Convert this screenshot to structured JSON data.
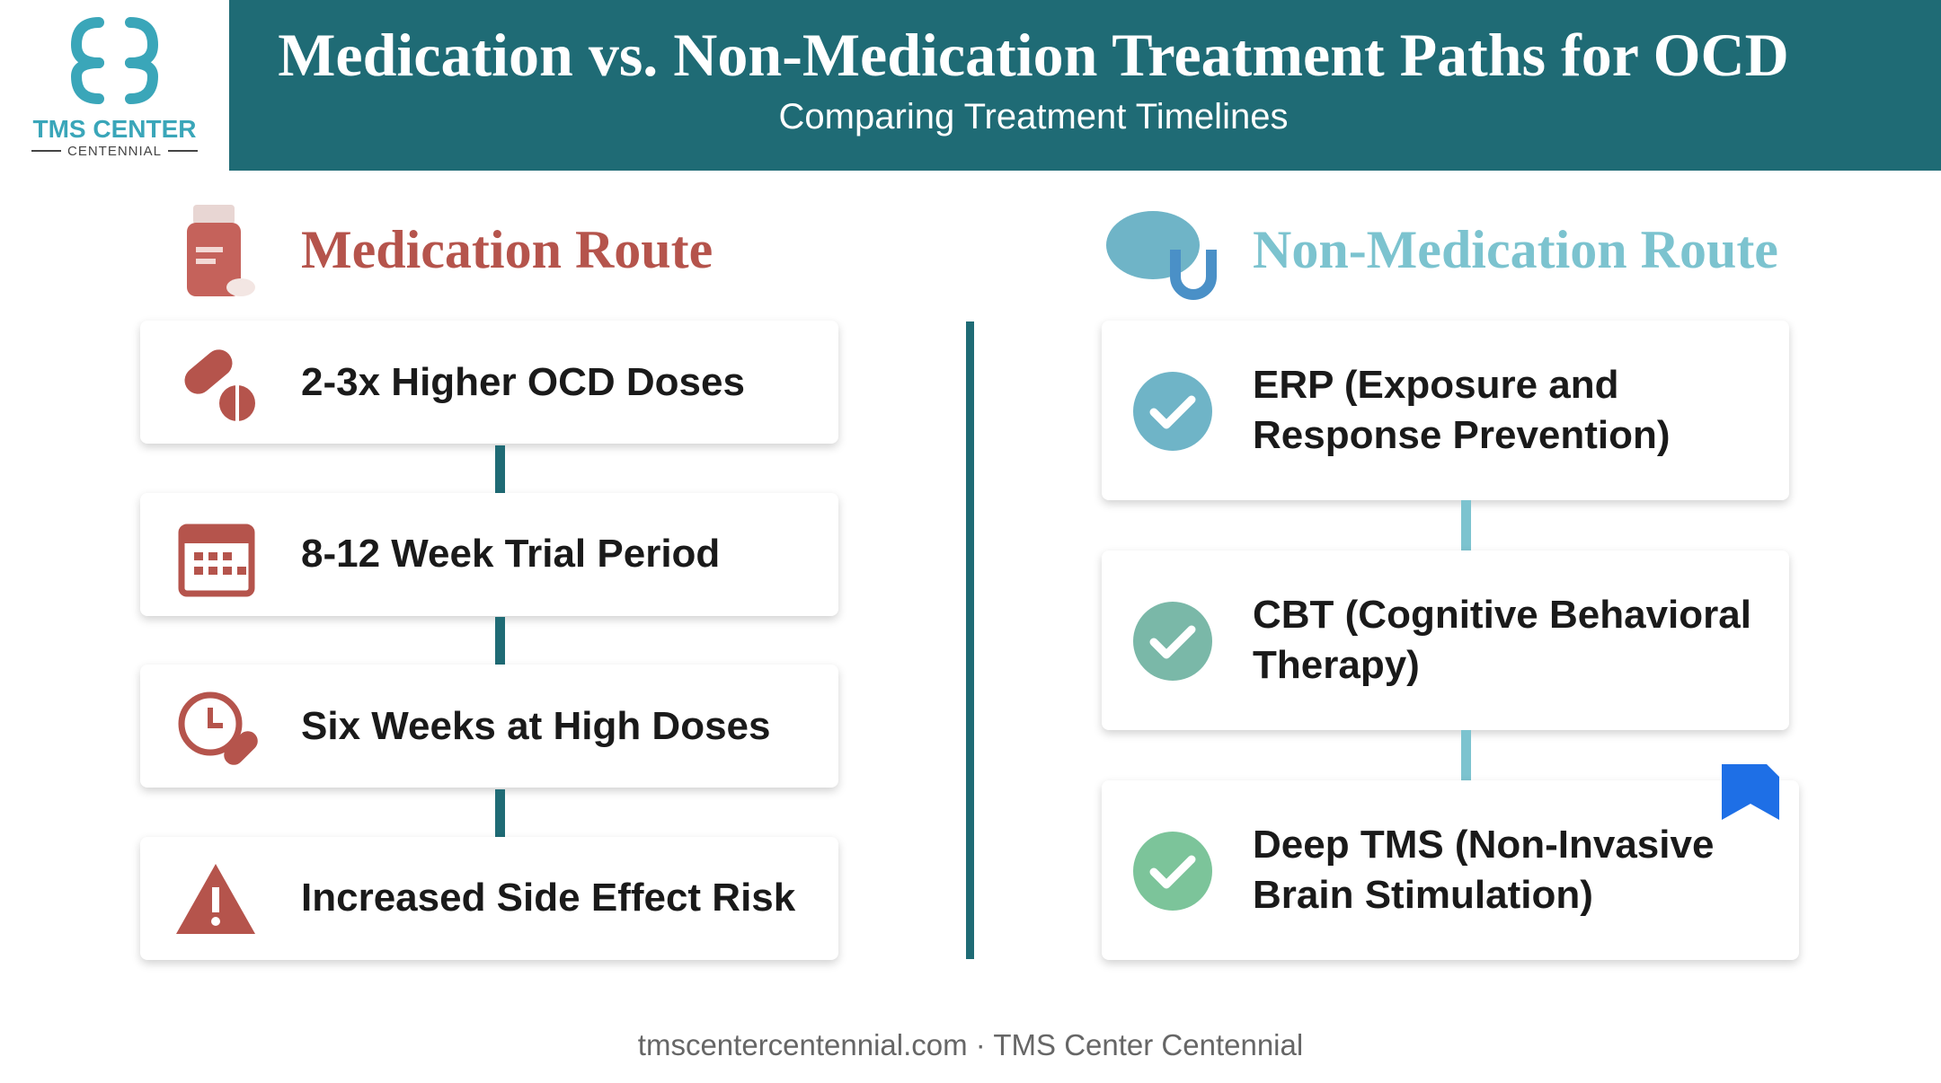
{
  "header": {
    "logo": {
      "name": "TMS CENTER",
      "sub": "CENTENNIAL"
    },
    "title": "Medication vs. Non-Medication Treatment Paths for OCD",
    "subtitle": "Comparing Treatment Timelines"
  },
  "left": {
    "heading": "Medication Route",
    "items": [
      "2-3x Higher OCD Doses",
      "8-12 Week Trial Period",
      "Six Weeks at High Doses",
      "Increased Side Effect Risk"
    ]
  },
  "right": {
    "heading": "Non-Medication Route",
    "items": [
      "ERP (Exposure and Response Prevention)",
      "CBT (Cognitive Behavioral Therapy)",
      "Deep TMS (Non-Invasive Brain Stimulation)"
    ]
  },
  "footer": "tmscentercentennial.com · TMS Center Centennial"
}
